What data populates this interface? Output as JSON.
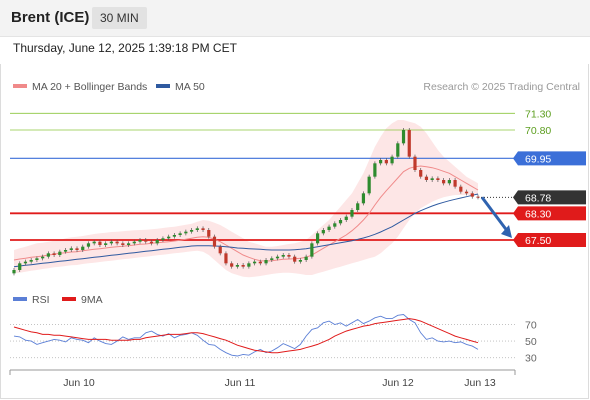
{
  "header": {
    "instrument": "Brent (ICE)",
    "timeframe": "30 MIN",
    "datetime": "Thursday, June 12, 2025 1:39:18 PM CET"
  },
  "legend": {
    "ma20_label": "MA 20 + Bollinger Bands",
    "ma50_label": "MA 50",
    "copyright": "Research © 2025 Trading Central",
    "rsi_label": "RSI",
    "rsi_ma_label": "9MA"
  },
  "colors": {
    "ma20": "#f08a8a",
    "ma50": "#2f5aa0",
    "band_fill": "#fde2e2",
    "resistance": "#8cc63f",
    "pivot": "#3b6fd8",
    "support": "#e01b1b",
    "last": "#333333",
    "arrow": "#2f63b0",
    "candle_up": "#2e8b2e",
    "candle_down": "#c0392b",
    "rsi": "#5b7fd6",
    "rsi_ma": "#e01b1b"
  },
  "chart_data": [
    {
      "type": "line",
      "name": "price",
      "x_ticks": [
        "Jun 10",
        "Jun 11",
        "Jun 12",
        "Jun 13"
      ],
      "ylim": [
        66.3,
        71.7
      ],
      "levels": [
        {
          "kind": "resistance",
          "value": 71.3,
          "label": "71.30"
        },
        {
          "kind": "resistance",
          "value": 70.8,
          "label": "70.80"
        },
        {
          "kind": "pivot",
          "value": 69.95,
          "label": "69.95"
        },
        {
          "kind": "last",
          "value": 68.78,
          "label": "68.78"
        },
        {
          "kind": "support",
          "value": 68.3,
          "label": "68.30"
        },
        {
          "kind": "support",
          "value": 67.5,
          "label": "67.50"
        }
      ],
      "close": [
        66.6,
        66.8,
        66.85,
        66.9,
        66.95,
        67.0,
        67.1,
        67.05,
        67.15,
        67.2,
        67.25,
        67.2,
        67.3,
        67.4,
        67.45,
        67.35,
        67.4,
        67.45,
        67.4,
        67.35,
        67.4,
        67.45,
        67.5,
        67.45,
        67.4,
        67.5,
        67.55,
        67.6,
        67.65,
        67.7,
        67.75,
        67.8,
        67.85,
        67.8,
        67.6,
        67.3,
        67.1,
        66.8,
        66.7,
        66.75,
        66.7,
        66.8,
        66.85,
        66.8,
        66.9,
        66.95,
        67.0,
        67.05,
        67.0,
        66.85,
        66.9,
        67.0,
        67.4,
        67.7,
        67.8,
        67.9,
        68.0,
        68.1,
        68.2,
        68.4,
        68.6,
        68.9,
        69.4,
        69.8,
        69.9,
        69.8,
        70.0,
        70.4,
        70.8,
        70.0,
        69.6,
        69.4,
        69.3,
        69.35,
        69.3,
        69.2,
        69.3,
        69.1,
        68.95,
        68.9,
        68.8,
        68.78
      ],
      "ma20": [
        66.9,
        66.93,
        66.95,
        66.98,
        67.0,
        67.02,
        67.05,
        67.07,
        67.1,
        67.12,
        67.14,
        67.15,
        67.18,
        67.2,
        67.22,
        67.24,
        67.26,
        67.28,
        67.3,
        67.31,
        67.33,
        67.35,
        67.37,
        67.38,
        67.4,
        67.42,
        67.43,
        67.45,
        67.47,
        67.49,
        67.52,
        67.55,
        67.58,
        67.6,
        67.58,
        67.52,
        67.45,
        67.35,
        67.25,
        67.15,
        67.05,
        66.98,
        66.92,
        66.88,
        66.87,
        66.88,
        66.9,
        66.92,
        66.93,
        66.94,
        66.95,
        66.98,
        67.05,
        67.15,
        67.25,
        67.35,
        67.45,
        67.55,
        67.65,
        67.78,
        67.93,
        68.1,
        68.3,
        68.55,
        68.78,
        68.98,
        69.17,
        69.36,
        69.55,
        69.65,
        69.7,
        69.72,
        69.7,
        69.67,
        69.62,
        69.56,
        69.5,
        69.4,
        69.3,
        69.2,
        69.1,
        69.0
      ],
      "bb_upper": [
        67.2,
        67.25,
        67.3,
        67.35,
        67.4,
        67.42,
        67.45,
        67.48,
        67.5,
        67.55,
        67.58,
        67.6,
        67.62,
        67.65,
        67.68,
        67.7,
        67.72,
        67.74,
        67.75,
        67.76,
        67.78,
        67.79,
        67.8,
        67.81,
        67.82,
        67.84,
        67.86,
        67.88,
        67.9,
        67.93,
        67.96,
        67.99,
        68.05,
        68.1,
        68.08,
        68.02,
        67.95,
        67.85,
        67.75,
        67.65,
        67.55,
        67.45,
        67.4,
        67.35,
        67.3,
        67.3,
        67.32,
        67.35,
        67.38,
        67.4,
        67.45,
        67.5,
        67.65,
        67.8,
        67.95,
        68.1,
        68.3,
        68.5,
        68.7,
        68.9,
        69.2,
        69.5,
        69.9,
        70.3,
        70.6,
        70.85,
        71.0,
        71.1,
        71.1,
        71.05,
        71.0,
        70.9,
        70.7,
        70.45,
        70.2,
        70.0,
        69.85,
        69.7,
        69.55,
        69.4,
        69.3,
        69.2
      ],
      "bb_lower": [
        66.5,
        66.52,
        66.55,
        66.58,
        66.6,
        66.63,
        66.65,
        66.68,
        66.7,
        66.72,
        66.74,
        66.75,
        66.78,
        66.8,
        66.82,
        66.84,
        66.86,
        66.88,
        66.9,
        66.92,
        66.94,
        66.96,
        66.98,
        67.0,
        67.02,
        67.04,
        67.06,
        67.08,
        67.1,
        67.12,
        67.14,
        67.16,
        67.18,
        67.15,
        67.05,
        66.9,
        66.75,
        66.6,
        66.5,
        66.45,
        66.4,
        66.38,
        66.4,
        66.42,
        66.45,
        66.48,
        66.5,
        66.52,
        66.52,
        66.5,
        66.48,
        66.45,
        66.45,
        66.5,
        66.55,
        66.6,
        66.65,
        66.7,
        66.75,
        66.8,
        66.85,
        66.9,
        66.95,
        67.0,
        67.1,
        67.25,
        67.4,
        67.6,
        67.85,
        68.1,
        68.3,
        68.45,
        68.55,
        68.65,
        68.72,
        68.78,
        68.82,
        68.85,
        68.85,
        68.85,
        68.85,
        68.85
      ],
      "ma50": [
        66.7,
        66.72,
        66.74,
        66.76,
        66.78,
        66.8,
        66.82,
        66.84,
        66.86,
        66.88,
        66.9,
        66.92,
        66.94,
        66.96,
        66.98,
        67.0,
        67.02,
        67.04,
        67.06,
        67.08,
        67.1,
        67.12,
        67.14,
        67.16,
        67.18,
        67.2,
        67.22,
        67.24,
        67.26,
        67.28,
        67.3,
        67.32,
        67.33,
        67.33,
        67.33,
        67.32,
        67.31,
        67.3,
        67.28,
        67.26,
        67.25,
        67.24,
        67.23,
        67.22,
        67.21,
        67.2,
        67.2,
        67.2,
        67.2,
        67.21,
        67.22,
        67.24,
        67.27,
        67.3,
        67.33,
        67.36,
        67.39,
        67.42,
        67.45,
        67.48,
        67.52,
        67.56,
        67.61,
        67.67,
        67.74,
        67.82,
        67.9,
        68.0,
        68.1,
        68.2,
        68.3,
        68.38,
        68.45,
        68.52,
        68.58,
        68.63,
        68.68,
        68.72,
        68.76,
        68.8,
        68.84,
        68.88
      ],
      "forecast_arrow": {
        "from": 68.78,
        "to": 67.5
      }
    },
    {
      "type": "line",
      "name": "RSI",
      "ylim": [
        20,
        85
      ],
      "y_ticks": [
        70,
        50,
        30
      ],
      "rsi": [
        56,
        55,
        51,
        50,
        46,
        48,
        50,
        52,
        51,
        49,
        54,
        52,
        51,
        48,
        54,
        50,
        47,
        46,
        50,
        55,
        52,
        54,
        54,
        60,
        62,
        58,
        56,
        59,
        54,
        57,
        58,
        60,
        57,
        51,
        46,
        45,
        40,
        36,
        33,
        32,
        34,
        33,
        37,
        40,
        36,
        38,
        42,
        47,
        44,
        41,
        46,
        56,
        64,
        66,
        72,
        74,
        70,
        72,
        68,
        72,
        76,
        71,
        74,
        78,
        80,
        77,
        77,
        81,
        82,
        76,
        72,
        60,
        52,
        54,
        50,
        49,
        50,
        48,
        49,
        46,
        44,
        40
      ],
      "ma9": [
        67,
        65,
        63,
        61,
        60,
        58,
        58,
        57,
        57,
        56,
        55,
        54,
        53,
        52,
        52,
        52,
        52,
        51,
        51,
        51,
        51,
        52,
        52,
        54,
        55,
        56,
        57,
        58,
        58,
        58,
        59,
        60,
        60,
        59,
        57,
        55,
        53,
        51,
        48,
        45,
        43,
        41,
        39,
        38,
        37,
        36,
        36,
        37,
        38,
        39,
        40,
        42,
        44,
        46,
        49,
        52,
        56,
        59,
        62,
        64,
        66,
        68,
        69,
        71,
        72,
        73,
        74,
        75,
        76,
        77,
        76,
        74,
        71,
        68,
        65,
        62,
        59,
        56,
        54,
        52,
        50,
        48
      ]
    }
  ]
}
